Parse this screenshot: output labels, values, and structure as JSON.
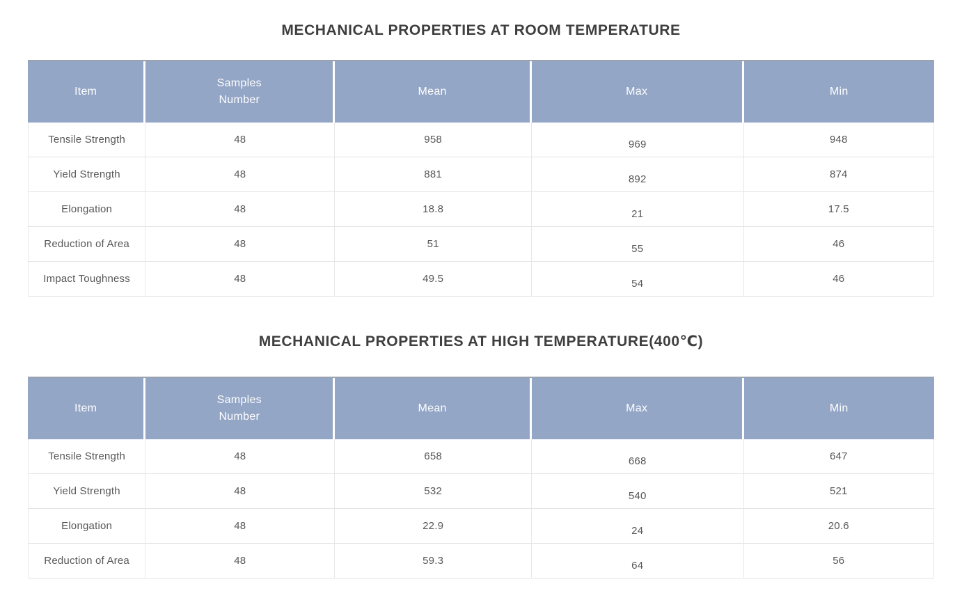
{
  "colors": {
    "header_bg": "#94a6c6",
    "header_text": "#fdfdfe",
    "body_text": "#575757",
    "grid_border": "#e3e3e3",
    "title_text": "#3e3e3e",
    "page_bg": "#ffffff"
  },
  "tables": [
    {
      "title": "MECHANICAL PROPERTIES AT ROOM TEMPERATURE",
      "columns": [
        "Item",
        "Samples\nNumber",
        "Mean",
        "Max",
        "Min"
      ],
      "rows": [
        [
          "Tensile Strength",
          "48",
          "958",
          "969",
          "948"
        ],
        [
          "Yield Strength",
          "48",
          "881",
          "892",
          "874"
        ],
        [
          "Elongation",
          "48",
          "18.8",
          "21",
          "17.5"
        ],
        [
          "Reduction of Area",
          "48",
          "51",
          "55",
          "46"
        ],
        [
          "Impact Toughness",
          "48",
          "49.5",
          "54",
          "46"
        ]
      ]
    },
    {
      "title": "MECHANICAL PROPERTIES AT HIGH TEMPERATURE(400℃)",
      "columns": [
        "Item",
        "Samples\nNumber",
        "Mean",
        "Max",
        "Min"
      ],
      "rows": [
        [
          "Tensile Strength",
          "48",
          "658",
          "668",
          "647"
        ],
        [
          "Yield Strength",
          "48",
          "532",
          "540",
          "521"
        ],
        [
          "Elongation",
          "48",
          "22.9",
          "24",
          "20.6"
        ],
        [
          "Reduction of Area",
          "48",
          "59.3",
          "64",
          "56"
        ]
      ]
    }
  ],
  "chart_data": [
    {
      "type": "table",
      "title": "MECHANICAL PROPERTIES AT ROOM TEMPERATURE",
      "columns": [
        "Item",
        "Samples Number",
        "Mean",
        "Max",
        "Min"
      ],
      "rows": [
        {
          "item": "Tensile Strength",
          "samples_number": 48,
          "mean": 958,
          "max": 969,
          "min": 948
        },
        {
          "item": "Yield Strength",
          "samples_number": 48,
          "mean": 881,
          "max": 892,
          "min": 874
        },
        {
          "item": "Elongation",
          "samples_number": 48,
          "mean": 18.8,
          "max": 21,
          "min": 17.5
        },
        {
          "item": "Reduction of Area",
          "samples_number": 48,
          "mean": 51,
          "max": 55,
          "min": 46
        },
        {
          "item": "Impact Toughness",
          "samples_number": 48,
          "mean": 49.5,
          "max": 54,
          "min": 46
        }
      ]
    },
    {
      "type": "table",
      "title": "MECHANICAL PROPERTIES AT HIGH TEMPERATURE(400℃)",
      "columns": [
        "Item",
        "Samples Number",
        "Mean",
        "Max",
        "Min"
      ],
      "rows": [
        {
          "item": "Tensile Strength",
          "samples_number": 48,
          "mean": 658,
          "max": 668,
          "min": 647
        },
        {
          "item": "Yield Strength",
          "samples_number": 48,
          "mean": 532,
          "max": 540,
          "min": 521
        },
        {
          "item": "Elongation",
          "samples_number": 48,
          "mean": 22.9,
          "max": 24,
          "min": 20.6
        },
        {
          "item": "Reduction of Area",
          "samples_number": 48,
          "mean": 59.3,
          "max": 64,
          "min": 56
        }
      ]
    }
  ]
}
